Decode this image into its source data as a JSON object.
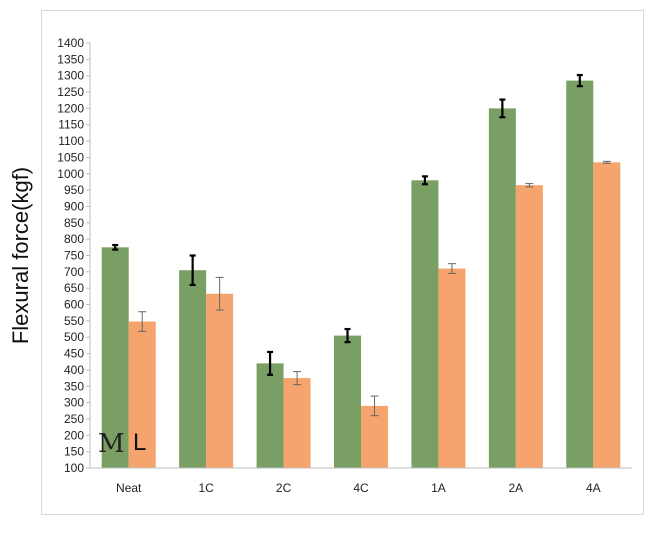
{
  "chart_data": {
    "type": "bar",
    "ylabel": "Flexural force(kgf)",
    "xlabel": "",
    "title": "",
    "ylim": [
      100,
      1400
    ],
    "ytick_step": 50,
    "categories": [
      "Neat",
      "1C",
      "2C",
      "4C",
      "1A",
      "2A",
      "4A"
    ],
    "series": [
      {
        "name": "M",
        "color": "#7a9f64",
        "values": [
          775,
          705,
          420,
          505,
          980,
          1200,
          1285
        ],
        "errors": [
          7,
          45,
          35,
          20,
          12,
          27,
          17
        ],
        "error_style": "bold"
      },
      {
        "name": "L",
        "color": "#f4a46c",
        "values": [
          548,
          633,
          375,
          290,
          710,
          965,
          1035
        ],
        "errors": [
          30,
          50,
          20,
          30,
          15,
          5,
          3
        ],
        "error_style": "thin"
      }
    ],
    "grid": false,
    "legend": "bottom-left inside plot"
  }
}
